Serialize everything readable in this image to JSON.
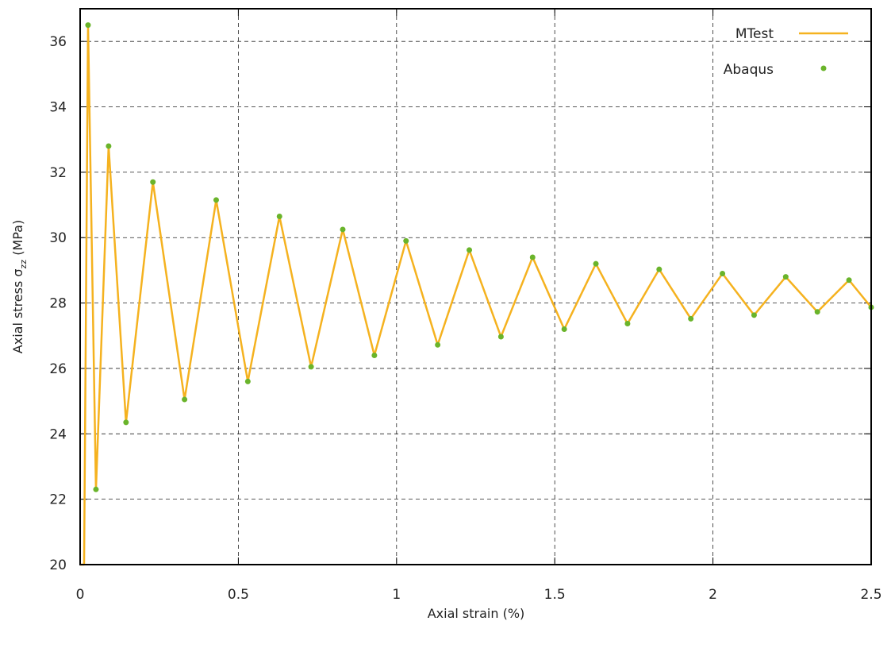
{
  "chart_data": {
    "type": "line",
    "xlabel": "Axial strain (%)",
    "ylabel_main": "Axial stress σ",
    "ylabel_sub": "zz",
    "ylabel_unit": " (MPa)",
    "xlim": [
      0,
      2.5
    ],
    "ylim": [
      20,
      37
    ],
    "x_ticks": [
      0,
      0.5,
      1,
      1.5,
      2,
      2.5
    ],
    "x_tick_labels": [
      "0",
      "0.5",
      "1",
      "1.5",
      "2",
      "2.5"
    ],
    "y_ticks": [
      20,
      22,
      24,
      26,
      28,
      30,
      32,
      34,
      36
    ],
    "y_tick_labels": [
      "20",
      "22",
      "24",
      "26",
      "28",
      "30",
      "32",
      "34",
      "36"
    ],
    "grid": true,
    "legend_position": "top-right",
    "series": [
      {
        "name": "MTest",
        "style": "line",
        "color": "#f5b21f",
        "x": [
          0,
          0.0125,
          0.025,
          0.05,
          0.09,
          0.145,
          0.23,
          0.33,
          0.43,
          0.53,
          0.63,
          0.73,
          0.83,
          0.93,
          1.03,
          1.13,
          1.23,
          1.33,
          1.43,
          1.53,
          1.63,
          1.73,
          1.83,
          1.93,
          2.03,
          2.13,
          2.23,
          2.33,
          2.43,
          2.5
        ],
        "y": [
          20.0,
          20.0,
          36.5,
          22.3,
          32.8,
          24.35,
          31.7,
          25.05,
          31.15,
          25.6,
          30.65,
          26.05,
          30.25,
          26.4,
          29.9,
          26.72,
          29.62,
          26.97,
          29.4,
          27.2,
          29.2,
          27.37,
          29.03,
          27.52,
          28.9,
          27.63,
          28.8,
          27.73,
          28.7,
          27.87
        ]
      },
      {
        "name": "Abaqus",
        "style": "points",
        "color": "#6ab42b",
        "x": [
          0.025,
          0.05,
          0.09,
          0.145,
          0.23,
          0.33,
          0.43,
          0.53,
          0.63,
          0.73,
          0.83,
          0.93,
          1.03,
          1.13,
          1.23,
          1.33,
          1.43,
          1.53,
          1.63,
          1.73,
          1.83,
          1.93,
          2.03,
          2.13,
          2.23,
          2.33,
          2.43,
          2.5
        ],
        "y": [
          36.5,
          22.3,
          32.8,
          24.35,
          31.7,
          25.05,
          31.15,
          25.6,
          30.65,
          26.05,
          30.25,
          26.4,
          29.9,
          26.72,
          29.62,
          26.97,
          29.4,
          27.2,
          29.2,
          27.37,
          29.03,
          27.52,
          28.9,
          27.63,
          28.8,
          27.73,
          28.7,
          27.87
        ]
      }
    ]
  }
}
